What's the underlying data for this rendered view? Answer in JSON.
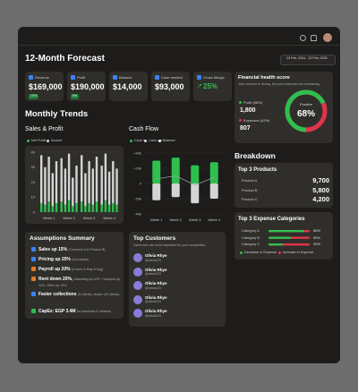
{
  "topbar": {
    "date_range": "23 Feb, 2024 - 23 Feb, 2025"
  },
  "header": {
    "title": "12-Month Forecast"
  },
  "kpis": [
    {
      "label": "Revenue",
      "value": "$169,000",
      "change": "10%"
    },
    {
      "label": "Profit",
      "value": "$190,000",
      "change": "8%"
    },
    {
      "label": "Balance",
      "value": "$14,000"
    },
    {
      "label": "Cash needed",
      "value": "$93,000"
    },
    {
      "label": "Gross Margin",
      "value": "25%"
    }
  ],
  "trends": {
    "title": "Monthly Trends",
    "sales_profit": {
      "type": "bar",
      "title": "Sales & Profit",
      "categories": [
        null,
        null,
        "Week 1",
        null,
        null,
        null,
        null,
        "Week 2",
        null,
        null,
        null,
        null,
        "Week 3",
        null,
        null,
        null,
        null,
        "Week 4",
        null,
        null
      ],
      "ylim": [
        0,
        40
      ],
      "yticks": [
        0,
        10,
        20,
        30,
        40
      ],
      "series": [
        {
          "name": "Net Profit",
          "color": "#2fbf4f",
          "values": [
            6,
            5,
            7,
            4,
            6,
            7,
            5,
            8,
            4,
            6,
            7,
            4,
            6,
            5,
            7,
            5,
            8,
            5,
            6,
            5
          ]
        },
        {
          "name": "Income",
          "color": "#d4d4d4",
          "values": [
            32,
            25,
            30,
            22,
            28,
            29,
            24,
            31,
            19,
            25,
            31,
            22,
            28,
            24,
            30,
            26,
            31,
            22,
            28,
            24
          ]
        }
      ]
    },
    "cash_flow": {
      "type": "bar",
      "title": "Cash Flow",
      "categories": [
        "Week 1",
        "Week 2",
        "Week 3",
        "Week 4"
      ],
      "ylim": [
        -40,
        40
      ],
      "yticks": [
        {
          "value": 40,
          "label": "+40k"
        },
        {
          "value": 20,
          "label": "+20k"
        },
        0,
        {
          "value": -20,
          "label": "-20k"
        },
        {
          "value": -40,
          "label": "-40k"
        }
      ],
      "series": [
        {
          "name": "Cash in",
          "color": "#2fbf4f",
          "values": [
            30,
            34,
            24,
            28
          ]
        },
        {
          "name": "Cash out",
          "color": "#d4d4d4",
          "values": [
            -22,
            -18,
            -26,
            -20
          ]
        },
        {
          "name": "Balance",
          "color": "#9aa0a6",
          "values": [
            6,
            10,
            -2,
            8
          ]
        }
      ]
    }
  },
  "health": {
    "title": "Financial health score",
    "subtitle": "Your revenue is strong, but your expenses are increasing",
    "profit_label": "Profit (58%)",
    "profit_value": "1,800",
    "expenses_label": "Expenses (42%)",
    "expenses_value": "807",
    "status": "Positive",
    "score": 68,
    "score_label": "68%"
  },
  "breakdown": {
    "title": "Breakdown",
    "products": {
      "title": "Top 3 Products",
      "rows": [
        {
          "name": "Product A",
          "value": "9,700"
        },
        {
          "name": "Product B",
          "value": "5,800"
        },
        {
          "name": "Product C",
          "value": "4,200"
        }
      ]
    },
    "expenses": {
      "title": "Top 3 Expense Categories",
      "rows": [
        {
          "name": "Category A",
          "value": 86,
          "label": "86%"
        },
        {
          "name": "Category B",
          "value": 55,
          "label": "55%"
        },
        {
          "name": "Category C",
          "value": 35,
          "label": "35%"
        }
      ],
      "legend": [
        "Decrease in Expense",
        "Increase in Expense"
      ]
    }
  },
  "assumptions": {
    "title": "Assumptions Summary",
    "items": [
      {
        "main": "Sales up 15%",
        "detail": "(Customer A & Product B)"
      },
      {
        "main": "Pricing up 25%",
        "detail": "(4 products)"
      },
      {
        "main": "Payroll up 20%",
        "detail": "(4 hires in May & Aug)"
      },
      {
        "main": "Rent down 20%,",
        "detail": "Marketing up 10%, Transport up 14%, Other up 19%"
      },
      {
        "main": "Faster collections",
        "detail": "(5 clients), slower (10 clients)"
      },
      {
        "main": "CapEx: EGP 3.4M",
        "detail": "for machines & vehicles"
      }
    ]
  },
  "customers": {
    "title": "Top Customers",
    "subtitle": "Users who are most important for your competition",
    "items": [
      {
        "name": "Olivia Rhye",
        "handle": "@olivia123"
      },
      {
        "name": "Olivia Rhye",
        "handle": "@olivia123"
      },
      {
        "name": "Olivia Rhye",
        "handle": "@olivia123"
      },
      {
        "name": "Olivia Rhye",
        "handle": "@olivia123"
      },
      {
        "name": "Olivia Rhye",
        "handle": "@olivia123"
      }
    ]
  }
}
